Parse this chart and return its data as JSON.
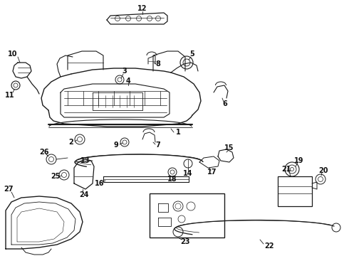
{
  "bg_color": "#ffffff",
  "line_color": "#1a1a1a",
  "label_color": "#111111"
}
